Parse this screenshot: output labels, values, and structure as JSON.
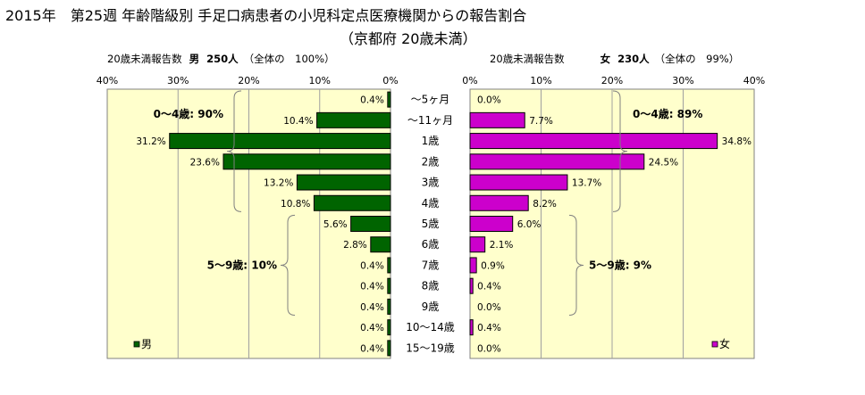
{
  "title": "2015年　第25週 年齢階級別 手足口病患者の小児科定点医療機関からの報告割合",
  "subtitle": "（京都府 20歳未満）",
  "chart_data": {
    "type": "bar",
    "orientation": "horizontal",
    "categories": [
      "～5ヶ月",
      "～11ヶ月",
      "1歳",
      "2歳",
      "3歳",
      "4歳",
      "5歳",
      "6歳",
      "7歳",
      "8歳",
      "9歳",
      "10～14歳",
      "15～19歳"
    ],
    "xlim": [
      0,
      40
    ],
    "x_ticks": [
      "40%",
      "30%",
      "20%",
      "10%",
      "0%"
    ],
    "x_ticks_right": [
      "0%",
      "10%",
      "20%",
      "30%",
      "40%"
    ],
    "grid": true,
    "series": [
      {
        "name": "男",
        "color": "#006400",
        "header_prefix": "20歳未満報告数",
        "header_sex": "男",
        "header_count": "250人",
        "header_share": "（全体の　100%）",
        "values": [
          0.4,
          10.4,
          31.2,
          23.6,
          13.2,
          10.8,
          5.6,
          2.8,
          0.4,
          0.4,
          0.4,
          0.4,
          0.4
        ],
        "labels": [
          "0.4%",
          "10.4%",
          "31.2%",
          "23.6%",
          "13.2%",
          "10.8%",
          "5.6%",
          "2.8%",
          "0.4%",
          "0.4%",
          "0.4%",
          "0.4%",
          "0.4%"
        ],
        "groups": [
          {
            "label": "0～4歳: 90%",
            "from": 0,
            "to": 5
          },
          {
            "label": "5～9歳: 10%",
            "from": 6,
            "to": 10
          }
        ]
      },
      {
        "name": "女",
        "color": "#cc00cc",
        "header_prefix": "20歳未満報告数",
        "header_sex": "女",
        "header_count": "230人",
        "header_share": "（全体の　99%）",
        "values": [
          0.0,
          7.7,
          34.8,
          24.5,
          13.7,
          8.2,
          6.0,
          2.1,
          0.9,
          0.4,
          0.0,
          0.4,
          0.0
        ],
        "labels": [
          "0.0%",
          "7.7%",
          "34.8%",
          "24.5%",
          "13.7%",
          "8.2%",
          "6.0%",
          "2.1%",
          "0.9%",
          "0.4%",
          "0.0%",
          "0.4%",
          "0.0%"
        ],
        "groups": [
          {
            "label": "0～4歳: 89%",
            "from": 0,
            "to": 5
          },
          {
            "label": "5～9歳: 9%",
            "from": 6,
            "to": 10
          }
        ]
      }
    ]
  }
}
